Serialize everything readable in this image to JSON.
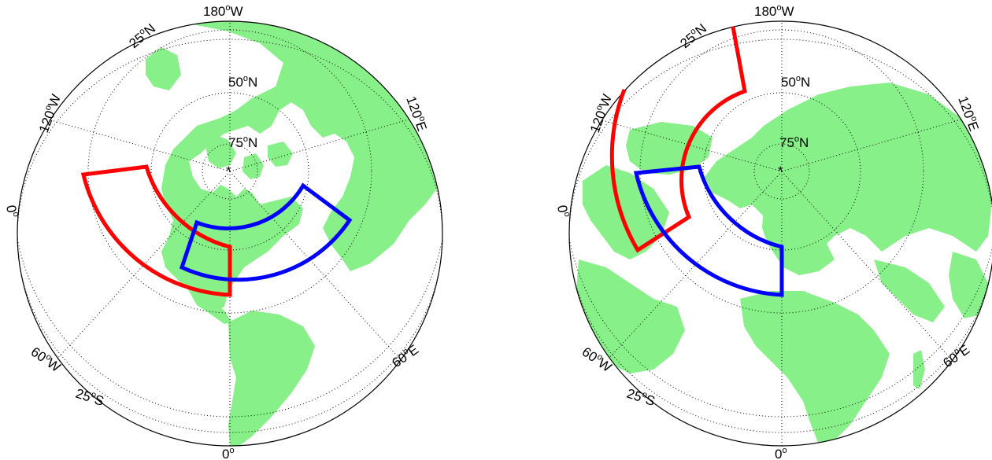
{
  "maps": [
    {
      "name": "left-map",
      "labels": {
        "lon_top": "180",
        "lon_top_suffix": "W",
        "lon_bottom": "0",
        "lon_bottom_suffix": "",
        "lon_120w": "120",
        "lon_120w_suffix": "W",
        "lon_120e": "120",
        "lon_120e_suffix": "E",
        "lon_60w": "60",
        "lon_60w_suffix": "W",
        "lon_60e": "60",
        "lon_60e_suffix": "E",
        "lat_25n": "25",
        "lat_25n_suffix": "N",
        "lat_50n": "50",
        "lat_50n_suffix": "N",
        "lat_75n": "75",
        "lat_75n_suffix": "N",
        "lat_0": "0",
        "lat_0_suffix": "",
        "lat_25s": "25",
        "lat_25s_suffix": "S",
        "degree_symbol": "o"
      }
    },
    {
      "name": "right-map",
      "labels": {
        "lon_top": "180",
        "lon_top_suffix": "W",
        "lon_bottom": "0",
        "lon_bottom_suffix": "",
        "lon_120w": "120",
        "lon_120w_suffix": "W",
        "lon_120e": "120",
        "lon_120e_suffix": "E",
        "lon_60w": "60",
        "lon_60w_suffix": "W",
        "lon_60e": "60",
        "lon_60e_suffix": "E",
        "lat_25n": "25",
        "lat_25n_suffix": "N",
        "lat_50n": "50",
        "lat_50n_suffix": "N",
        "lat_75n": "75",
        "lat_75n_suffix": "N",
        "lat_0": "0",
        "lat_0_suffix": "",
        "lat_25s": "25",
        "lat_25s_suffix": "S",
        "degree_symbol": "o"
      }
    }
  ],
  "colors": {
    "land": "#88f088",
    "region_red": "#ff0000",
    "region_blue": "#0000ff",
    "grid": "#000000"
  }
}
